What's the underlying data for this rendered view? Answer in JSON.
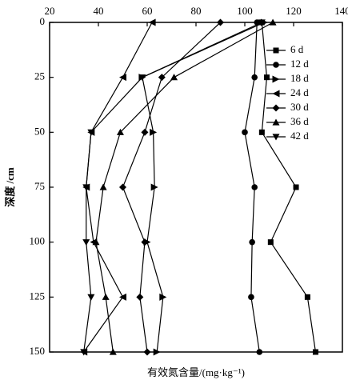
{
  "chart_data": {
    "type": "line",
    "y_label": "深度 /cm",
    "x_label": "有效氮含量/(mg·kg⁻¹)",
    "y": [
      0,
      25,
      50,
      75,
      100,
      125,
      150
    ],
    "ylim": [
      0,
      150
    ],
    "yticks": [
      0,
      25,
      50,
      75,
      100,
      125,
      150
    ],
    "y_inverted": true,
    "xlim": [
      20,
      140
    ],
    "xticks": [
      20,
      40,
      60,
      80,
      100,
      120,
      140
    ],
    "x_axis_position": "top",
    "legend": "upper right",
    "color": "#000000",
    "series": [
      {
        "name": "6 d",
        "marker": "square",
        "values": [
          107,
          109,
          107,
          121,
          110.6,
          125.7,
          129
        ]
      },
      {
        "name": "12 d",
        "marker": "circle",
        "values": [
          105,
          104,
          100,
          104,
          103,
          102.6,
          106
        ]
      },
      {
        "name": "18 d",
        "marker": "triangle-right",
        "values": [
          108,
          58,
          62.5,
          63,
          60,
          66.5,
          64
        ]
      },
      {
        "name": "24 d",
        "marker": "triangle-left",
        "values": [
          62,
          50,
          37,
          35,
          38,
          50,
          34
        ]
      },
      {
        "name": "30 d",
        "marker": "diamond",
        "values": [
          90,
          66,
          59,
          50,
          59,
          57,
          60
        ]
      },
      {
        "name": "36 d",
        "marker": "triangle-up",
        "values": [
          111.5,
          71,
          49,
          42,
          39,
          43,
          46
        ]
      },
      {
        "name": "42 d",
        "marker": "triangle-down",
        "values": [
          107,
          58,
          37,
          35,
          35,
          37,
          34
        ]
      }
    ]
  }
}
